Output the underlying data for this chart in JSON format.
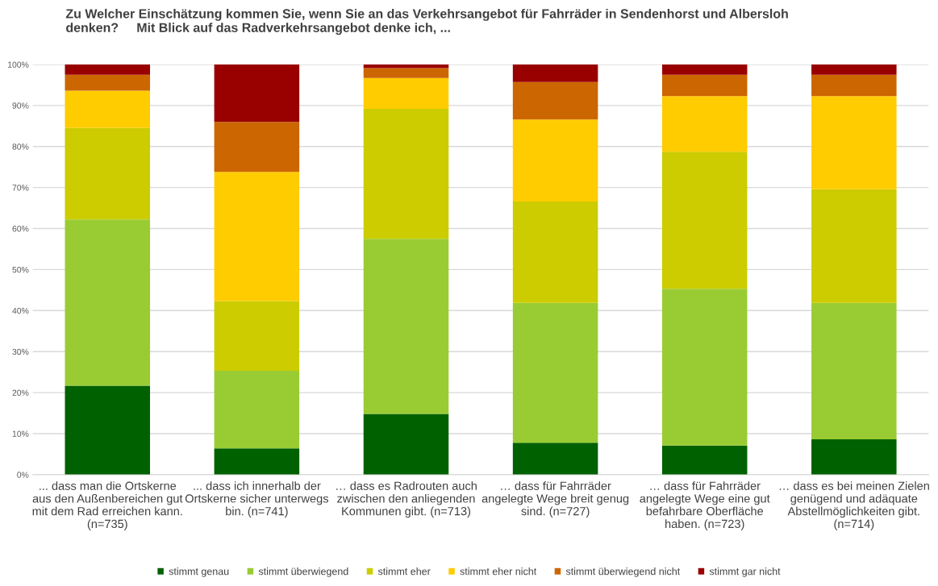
{
  "chart_data": {
    "type": "bar",
    "stacked": true,
    "title": "Zu Welcher Einschätzung kommen Sie, wenn Sie an das Verkehrsangebot für Fahrräder in Sendenhorst und Albersloh\ndenken?     Mit Blick auf das Radverkehrsangebot denke ich, ...",
    "categories": [
      "... dass man die Ortskerne\naus den Außenbereichen gut\nmit dem Rad erreichen kann.\n(n=735)",
      "... dass ich innerhalb der\nOrtskerne sicher unterwegs\nbin. (n=741)",
      "… dass es Radrouten auch\nzwischen den anliegenden\nKommunen gibt. (n=713)",
      "… dass für Fahrräder\nangelegte Wege breit genug\nsind. (n=727)",
      "… dass für Fahrräder\nangelegte Wege eine gut\nbefahrbare Oberfläche\nhaben. (n=723)",
      "… dass es bei meinen Zielen\ngenügend und adäquate\nAbstellmöglichkeiten gibt.\n(n=714)"
    ],
    "series": [
      {
        "name": "stimmt genau",
        "color": "#006100",
        "values": [
          21.7,
          6.4,
          14.8,
          7.8,
          7.1,
          8.6
        ]
      },
      {
        "name": "stimmt überwiegend",
        "color": "#99cc33",
        "values": [
          40.5,
          18.9,
          42.7,
          34.1,
          38.2,
          33.3
        ]
      },
      {
        "name": "stimmt eher",
        "color": "#cccc00",
        "values": [
          22.3,
          17.0,
          31.7,
          24.7,
          33.4,
          27.7
        ]
      },
      {
        "name": "stimmt eher nicht",
        "color": "#ffcc00",
        "values": [
          9.1,
          31.5,
          7.5,
          20.0,
          13.6,
          22.7
        ]
      },
      {
        "name": "stimmt überwiegend nicht",
        "color": "#cc6600",
        "values": [
          3.9,
          12.2,
          2.4,
          9.1,
          5.2,
          5.2
        ]
      },
      {
        "name": "stimmt gar nicht",
        "color": "#990000",
        "values": [
          2.5,
          14.0,
          0.9,
          4.3,
          2.5,
          2.5
        ]
      }
    ],
    "ylim": [
      0,
      100
    ],
    "yticks": [
      {
        "value": 0,
        "label": "0%"
      },
      {
        "value": 10,
        "label": "10%"
      },
      {
        "value": 20,
        "label": "20%"
      },
      {
        "value": 30,
        "label": "30%"
      },
      {
        "value": 40,
        "label": "40%"
      },
      {
        "value": 50,
        "label": "50%"
      },
      {
        "value": 60,
        "label": "60%"
      },
      {
        "value": 70,
        "label": "70%"
      },
      {
        "value": 80,
        "label": "80%"
      },
      {
        "value": 90,
        "label": "90%"
      },
      {
        "value": 100,
        "label": "100%"
      }
    ],
    "grid": "y",
    "legend": "bottom"
  }
}
